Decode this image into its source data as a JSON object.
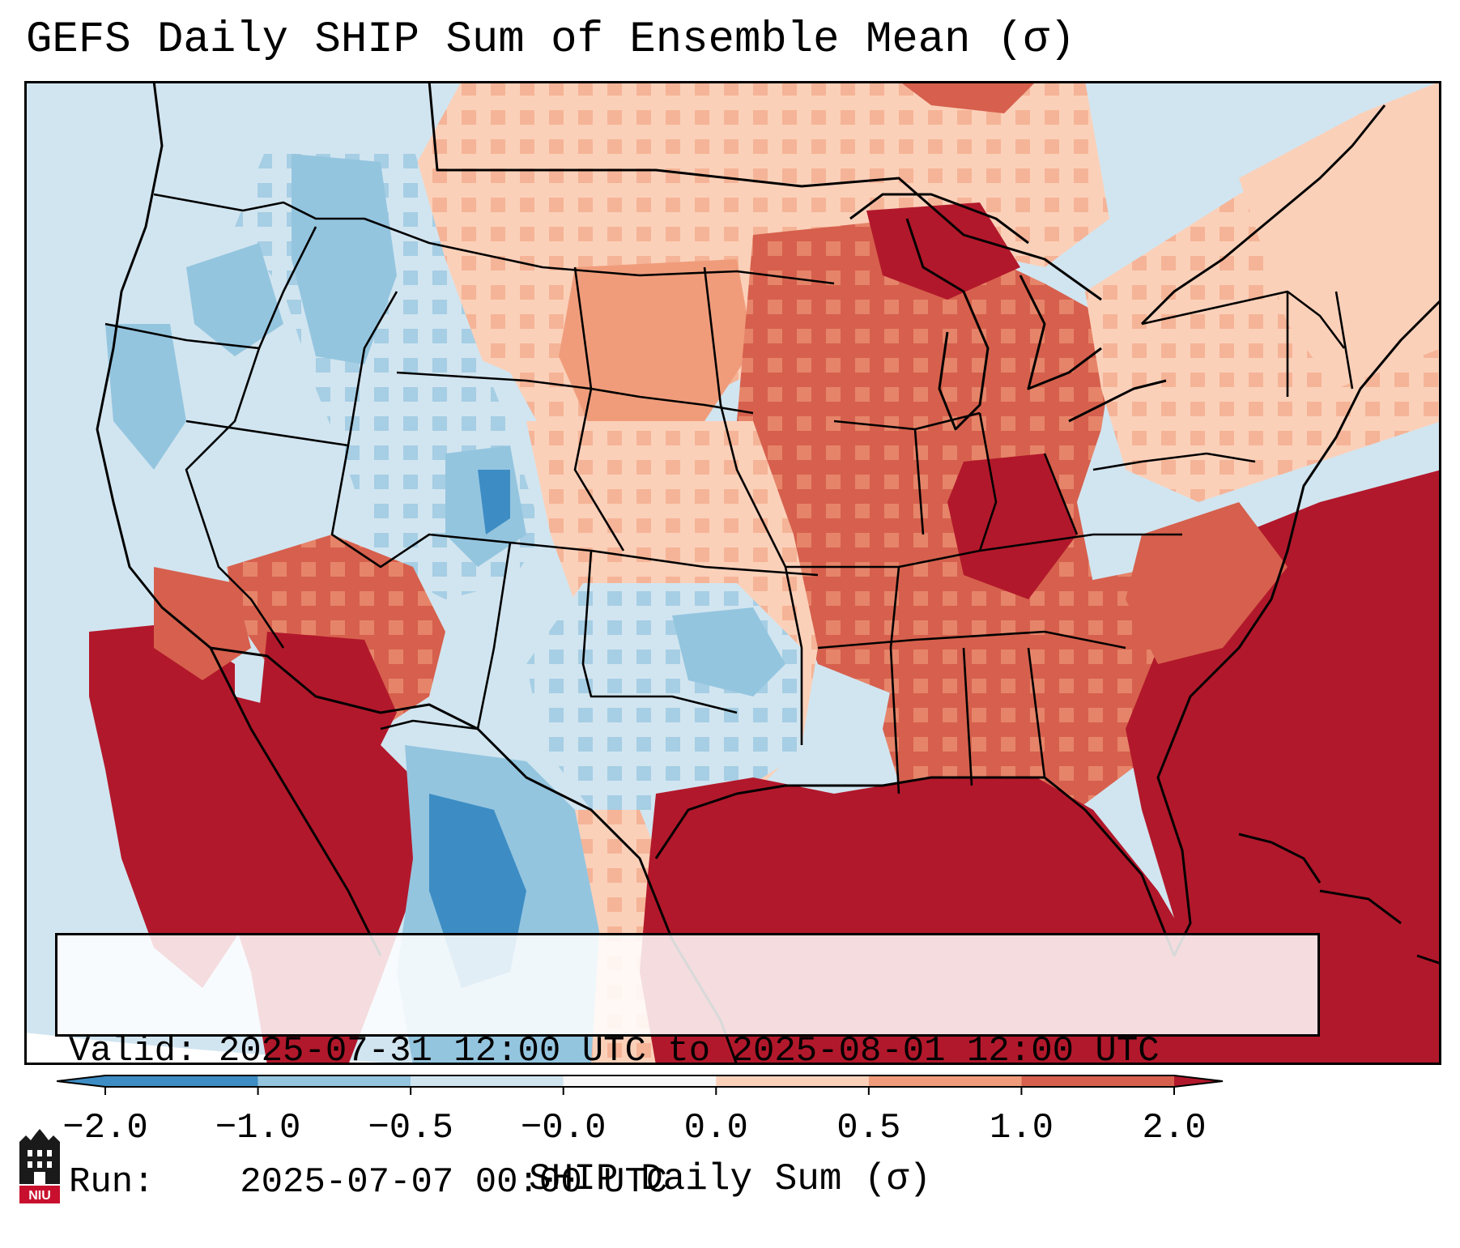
{
  "title": "GEFS Daily SHIP Sum of Ensemble Mean (σ)",
  "valid_label": "Valid:",
  "valid_value": "2025-07-31 12:00 UTC to 2025-08-01 12:00 UTC",
  "run_label": "Run:",
  "run_value": "2025-07-07 00:00 UTC",
  "colorbar": {
    "label": "SHIP Daily Sum (σ)",
    "ticks": [
      "−2.0",
      "−1.0",
      "−0.5",
      "−0.0",
      "0.0",
      "0.5",
      "1.0",
      "2.0"
    ],
    "colors": [
      "#3d8dc4",
      "#94c5df",
      "#d1e5f0",
      "#f7f7f7",
      "#fbd0b9",
      "#f09c7b",
      "#d6604d",
      "#b2182b"
    ]
  },
  "logo_text": "NIU",
  "colors": {
    "deep_red": "#b2182b",
    "red": "#d6604d",
    "salmon": "#f09c7b",
    "peach": "#fbd0b9",
    "pale_blue": "#d1e5f0",
    "light_blue": "#94c5df",
    "blue": "#3d8dc4"
  }
}
